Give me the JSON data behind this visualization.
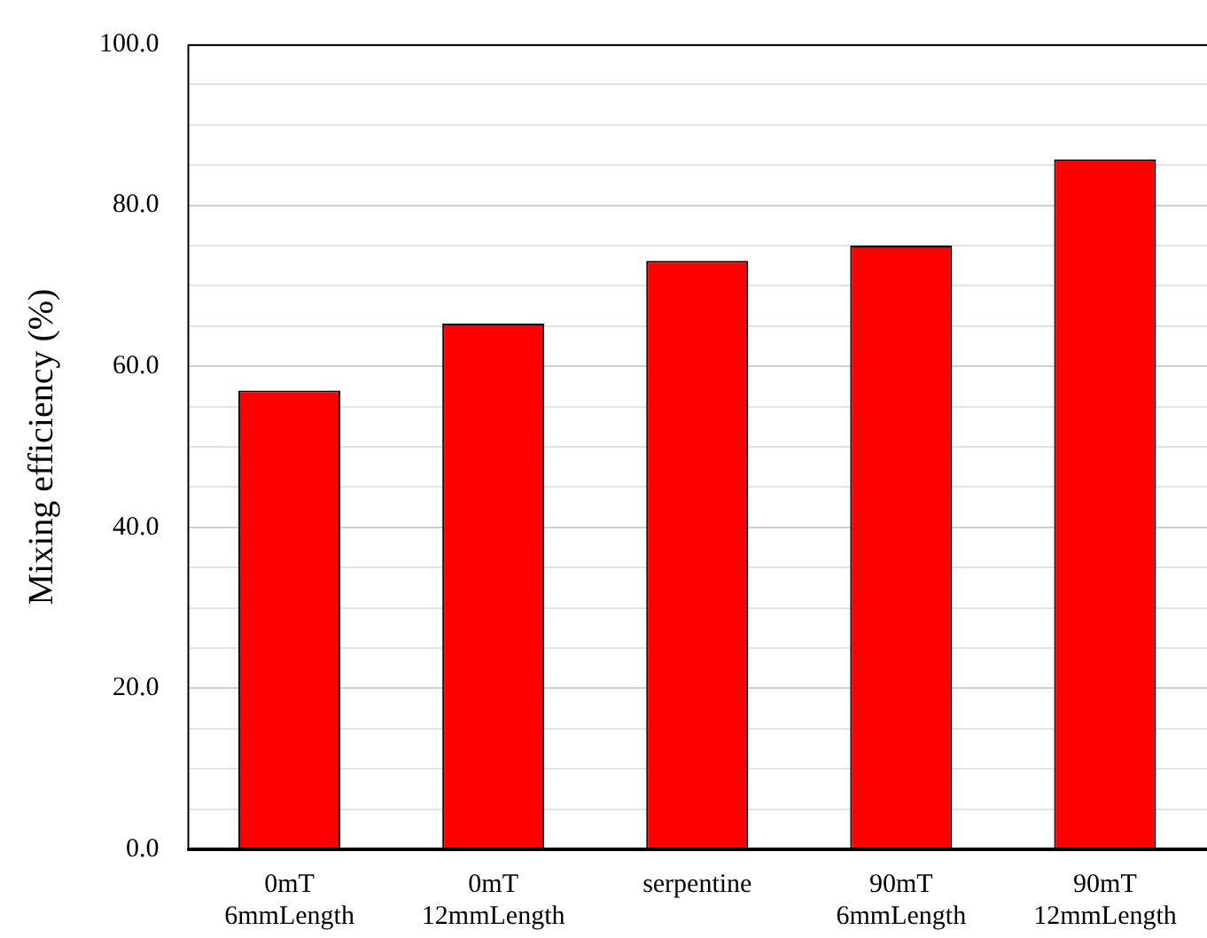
{
  "chart_data": {
    "type": "bar",
    "ylabel": "Mixing efficiency (%)",
    "categories": [
      "0mT\n6mmLength",
      "0mT\n12mmLength",
      "serpentine",
      "90mT\n6mmLength",
      "90mT\n12mmLength"
    ],
    "values": [
      57.0,
      65.3,
      73.1,
      75.0,
      85.7
    ],
    "color": "#ff0000",
    "ylim": [
      0,
      100
    ],
    "yticks": [
      {
        "value": 0,
        "label": "0.0"
      },
      {
        "value": 5,
        "label": null
      },
      {
        "value": 10,
        "label": null
      },
      {
        "value": 15,
        "label": null
      },
      {
        "value": 20,
        "label": "20.0"
      },
      {
        "value": 25,
        "label": null
      },
      {
        "value": 30,
        "label": null
      },
      {
        "value": 35,
        "label": null
      },
      {
        "value": 40,
        "label": "40.0"
      },
      {
        "value": 45,
        "label": null
      },
      {
        "value": 50,
        "label": null
      },
      {
        "value": 55,
        "label": null
      },
      {
        "value": 60,
        "label": "60.0"
      },
      {
        "value": 65,
        "label": null
      },
      {
        "value": 70,
        "label": null
      },
      {
        "value": 75,
        "label": null
      },
      {
        "value": 80,
        "label": "80.0"
      },
      {
        "value": 85,
        "label": null
      },
      {
        "value": 90,
        "label": null
      },
      {
        "value": 95,
        "label": null
      },
      {
        "value": 100,
        "label": "100.0"
      }
    ],
    "grid": true
  }
}
